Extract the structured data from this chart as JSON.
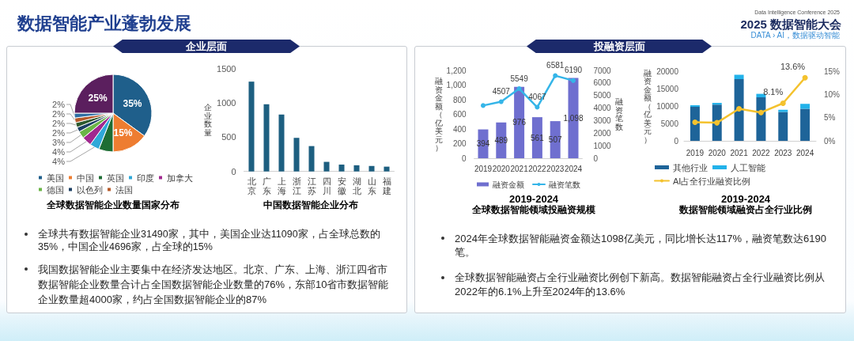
{
  "chart_data": [
    {
      "type": "pie",
      "title": "全球数据智能企业数量国家分布",
      "categories": [
        "美国",
        "中国",
        "英国",
        "印度",
        "加拿大",
        "德国",
        "以色列",
        null,
        "法国",
        null,
        null
      ],
      "values": [
        35,
        15,
        6,
        4,
        4,
        3,
        2,
        2,
        2,
        2,
        25
      ],
      "colors": [
        "#1f5f8b",
        "#ee7d31",
        "#1e6d34",
        "#2fa8d8",
        "#a1288f",
        "#6ab547",
        "#1c3f63",
        "#2d5a2d",
        "#b65a2a",
        "#2f6ea3",
        "#5b1f5e"
      ],
      "value_labels": [
        "35%",
        "15%",
        null,
        "4%",
        "4%",
        "3%",
        "2%",
        "2%",
        "2%",
        "2%",
        "25%"
      ],
      "legend": "bottom",
      "annotations": [
        "数据智能产业蓬勃发展",
        "Data Intelligence Conference 2025",
        "2025 数据智能大会",
        "DATA › AI，数据驱动智能",
        "企业层面",
        "全球共有数据智能企业31490家，其中，美国企业达11090家，占全球总数的35%，中国企业4696家，占全球的15%",
        "我国数据智能企业主要集中在经济发达地区。北京、广东、上海、浙江四省市数据智能企业数量合计占全国数据智能企业数量的76%，东部10省市数据智能企业数量超4000家，约占全国数据智能企业的87%"
      ]
    },
    {
      "type": "bar",
      "title": "中国数据智能企业分布",
      "ylabel": "企业数量",
      "categories": [
        "北京",
        "广东",
        "上海",
        "浙江",
        "江苏",
        "四川",
        "安徽",
        "湖北",
        "山东",
        "福建"
      ],
      "values": [
        1310,
        980,
        830,
        490,
        370,
        140,
        100,
        90,
        80,
        70
      ],
      "color": "#1d5f80",
      "ylim": [
        0,
        1500
      ],
      "yticks": [
        0,
        500,
        1000,
        1500
      ]
    },
    {
      "type": "bar",
      "title": "2019-2024",
      "subtitle": "全球数据智能领域投融资规模",
      "ylabel": "融资金额（亿美元）",
      "y2label": "融资笔数",
      "categories": [
        "2019",
        "2020",
        "2021",
        "2022",
        "2023",
        "2024"
      ],
      "series": [
        {
          "name": "融资金额",
          "color": "#6f6fcf",
          "values": [
            394,
            489,
            976,
            561,
            507,
            1098
          ],
          "value_labels": [
            "394",
            "489",
            "976",
            "561",
            "507",
            "1,098"
          ]
        },
        {
          "name": "融资笔数",
          "type": "line",
          "axis": "y2",
          "color": "#35b5e8",
          "values": [
            4200,
            4507,
            5549,
            4067,
            6581,
            6190
          ],
          "value_labels": [
            null,
            "4507",
            "5549",
            "4067",
            "6581",
            "6190"
          ]
        }
      ],
      "ylim": [
        0,
        1200
      ],
      "yticks": [
        0,
        200,
        400,
        600,
        800,
        {
          "value": 1000,
          "label": "1,000"
        },
        {
          "value": 1200,
          "label": "1,200"
        }
      ],
      "y2lim": [
        0,
        7000
      ],
      "y2ticks": [
        0,
        1000,
        2000,
        3000,
        4000,
        5000,
        6000,
        7000
      ],
      "legend": "bottom",
      "marker": "circle",
      "annotations": [
        "投融资层面",
        "2024年全球数据智能融资金额达1098亿美元，同比增长达117%，融资笔数达6190笔。",
        "全球数据智能融资占全行业融资比例创下新高。数据智能融资占全行业融资比例从2022年的6.1%上升至2024年的13.6%"
      ]
    },
    {
      "type": "bar",
      "title": "2019-2024",
      "subtitle": "数据智能领域融资占全行业比例",
      "ylabel": "融资金额（亿美元）",
      "categories": [
        "2019",
        "2020",
        "2021",
        "2022",
        "2023",
        "2024"
      ],
      "stacked": true,
      "series": [
        {
          "name": "其他行业",
          "color": "#1e6499",
          "values": [
            9800,
            10400,
            17700,
            12500,
            8300,
            9200
          ]
        },
        {
          "name": "人工智能",
          "color": "#22b2ea",
          "values": [
            400,
            500,
            1300,
            1000,
            600,
            1400
          ]
        },
        {
          "name": "AI占全行业融资比例",
          "type": "line",
          "axis": "y2",
          "color": "#f4c22e",
          "values": [
            4.0,
            3.9,
            6.9,
            6.1,
            8.1,
            13.6
          ],
          "value_labels": [
            null,
            null,
            null,
            null,
            "8.1%",
            "13.6%"
          ]
        }
      ],
      "ylim": [
        0,
        20000
      ],
      "yticks": [
        0,
        5000,
        10000,
        15000,
        20000
      ],
      "y2lim": [
        0,
        15
      ],
      "y2ticks": [
        {
          "value": 0,
          "label": "0%"
        },
        {
          "value": 5,
          "label": "5%"
        },
        {
          "value": 10,
          "label": "10%"
        },
        {
          "value": 15,
          "label": "15%"
        }
      ],
      "legend": "bottom",
      "marker": "circle"
    }
  ]
}
